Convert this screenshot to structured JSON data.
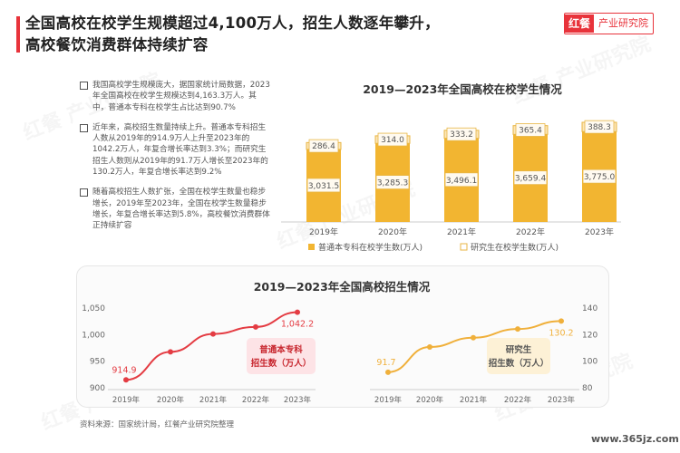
{
  "header": {
    "title_line1": "全国高校在校学生规模超过4,100万人，招生人数逐年攀升，",
    "title_line2": "高校餐饮消费群体持续扩容",
    "logo_mark": "红餐",
    "logo_text": "产业研究院"
  },
  "bullets": [
    "我国高校学生规模庞大，据国家统计局数据，2023年全国高校在校学生规模达到4,163.3万人。其中，普通本专科在校学生占比达到90.7%",
    "近年来，高校招生数量持续上升。普通本专科招生人数从2019年的914.9万人上升至2023年的1042.2万人，年复合增长率达到3.3%；而研究生招生人数则从2019年的91.7万人增长至2023年的130.2万人，年复合增长率达到9.2%",
    "随着高校招生人数扩张，全国在校学生数量也稳步增长，2019年至2023年，全国在校学生数量稳步增长，年复合增长率达到5.8%，高校餐饮消费群体正持续扩容"
  ],
  "watermark": "红餐 产业研究院",
  "colors": {
    "accent": "#e8333b",
    "undergrad": "#f2b531",
    "grad": "#fbe6b8",
    "line_red": "#e43c43",
    "line_orange": "#f0b03b"
  },
  "chart_data": [
    {
      "type": "bar",
      "title": "2019—2023年全国高校在校学生情况",
      "categories": [
        "2019年",
        "2020年",
        "2021年",
        "2022年",
        "2023年"
      ],
      "stacked": true,
      "series": [
        {
          "name": "普通本专科在校学生数(万人)",
          "values": [
            3031.5,
            3285.3,
            3496.1,
            3659.4,
            3775.0
          ],
          "labels": [
            "3,031.5",
            "3,285.3",
            "3,496.1",
            "3,659.4",
            "3,775.0"
          ]
        },
        {
          "name": "研究生在校学生数(万人)",
          "values": [
            286.4,
            314.0,
            333.2,
            365.4,
            388.3
          ],
          "labels": [
            "286.4",
            "314.0",
            "333.2",
            "365.4",
            "388.3"
          ]
        }
      ],
      "legend": "bottom"
    },
    {
      "type": "line",
      "title": "2019—2023年全国高校招生情况",
      "panels": [
        {
          "label_line1": "普通本专科",
          "label_line2": "招生数（万人）",
          "x": [
            "2019年",
            "2020年",
            "2021年",
            "2022年",
            "2023年"
          ],
          "values": [
            914.9,
            967.5,
            1001.3,
            1014.5,
            1042.2
          ],
          "end_labels": [
            "914.9",
            "1,042.2"
          ],
          "yticks": [
            "900",
            "950",
            "1,000",
            "1,050"
          ],
          "ylim": [
            900,
            1050
          ],
          "axis_side": "left"
        },
        {
          "label_line1": "研究生",
          "label_line2": "招生数（万人）",
          "x": [
            "2019年",
            "2020年",
            "2021年",
            "2022年",
            "2023年"
          ],
          "values": [
            91.7,
            110.7,
            117.7,
            124.2,
            130.2
          ],
          "end_labels": [
            "91.7",
            "130.2"
          ],
          "yticks": [
            "80",
            "100",
            "120",
            "140"
          ],
          "ylim": [
            80,
            140
          ],
          "axis_side": "right"
        }
      ]
    }
  ],
  "source_text": "资料来源：国家统计局，红餐产业研究院整理",
  "website": "www.365jz.com"
}
